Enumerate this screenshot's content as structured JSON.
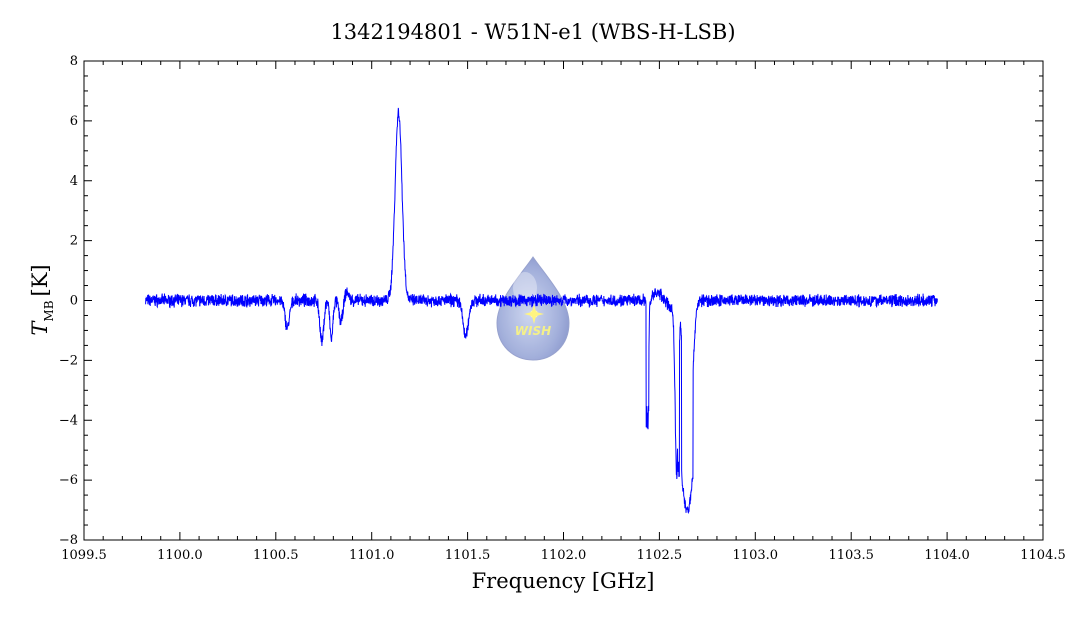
{
  "chart_data": {
    "type": "line",
    "title": "1342194801 - W51N-e1 (WBS-H-LSB)",
    "xlabel": "Frequency [GHz]",
    "ylabel": {
      "symbol": "T",
      "subscript": "MB",
      "unit": "[K]"
    },
    "xlim": [
      1099.5,
      1104.5
    ],
    "ylim": [
      -8,
      8
    ],
    "xticks": [
      "1099.5",
      "1100.0",
      "1100.5",
      "1101.0",
      "1101.5",
      "1102.0",
      "1102.5",
      "1103.0",
      "1103.5",
      "1104.0",
      "1104.5"
    ],
    "xtick_values": [
      1099.5,
      1100.0,
      1100.5,
      1101.0,
      1101.5,
      1102.0,
      1102.5,
      1103.0,
      1103.5,
      1104.0,
      1104.5
    ],
    "yticks": [
      "−8",
      "−6",
      "−4",
      "−2",
      "0",
      "2",
      "4",
      "6",
      "8"
    ],
    "ytick_values": [
      -8,
      -6,
      -4,
      -2,
      0,
      2,
      4,
      6,
      8
    ],
    "grid": false,
    "series": [
      {
        "color": "#0000ff",
        "x_start": 1099.82,
        "x_end": 1103.95,
        "features": [
          {
            "x": 1100.56,
            "y": -0.9,
            "width": 0.012
          },
          {
            "x": 1100.74,
            "y": -1.4,
            "width": 0.01
          },
          {
            "x": 1100.79,
            "y": -1.3,
            "width": 0.008
          },
          {
            "x": 1100.84,
            "y": -0.7,
            "width": 0.01
          },
          {
            "x": 1100.87,
            "y": 0.3,
            "width": 0.01
          },
          {
            "x": 1101.14,
            "y": 6.3,
            "width": 0.018
          },
          {
            "x": 1101.49,
            "y": -1.2,
            "width": 0.014
          },
          {
            "x": 1102.44,
            "y": -4.3,
            "width": 0.004
          },
          {
            "x": 1102.59,
            "y": -5.8,
            "width": 0.008
          },
          {
            "x": 1102.65,
            "y": -7.0,
            "width": 0.018
          }
        ]
      }
    ],
    "logo": {
      "text": "WISH"
    }
  }
}
